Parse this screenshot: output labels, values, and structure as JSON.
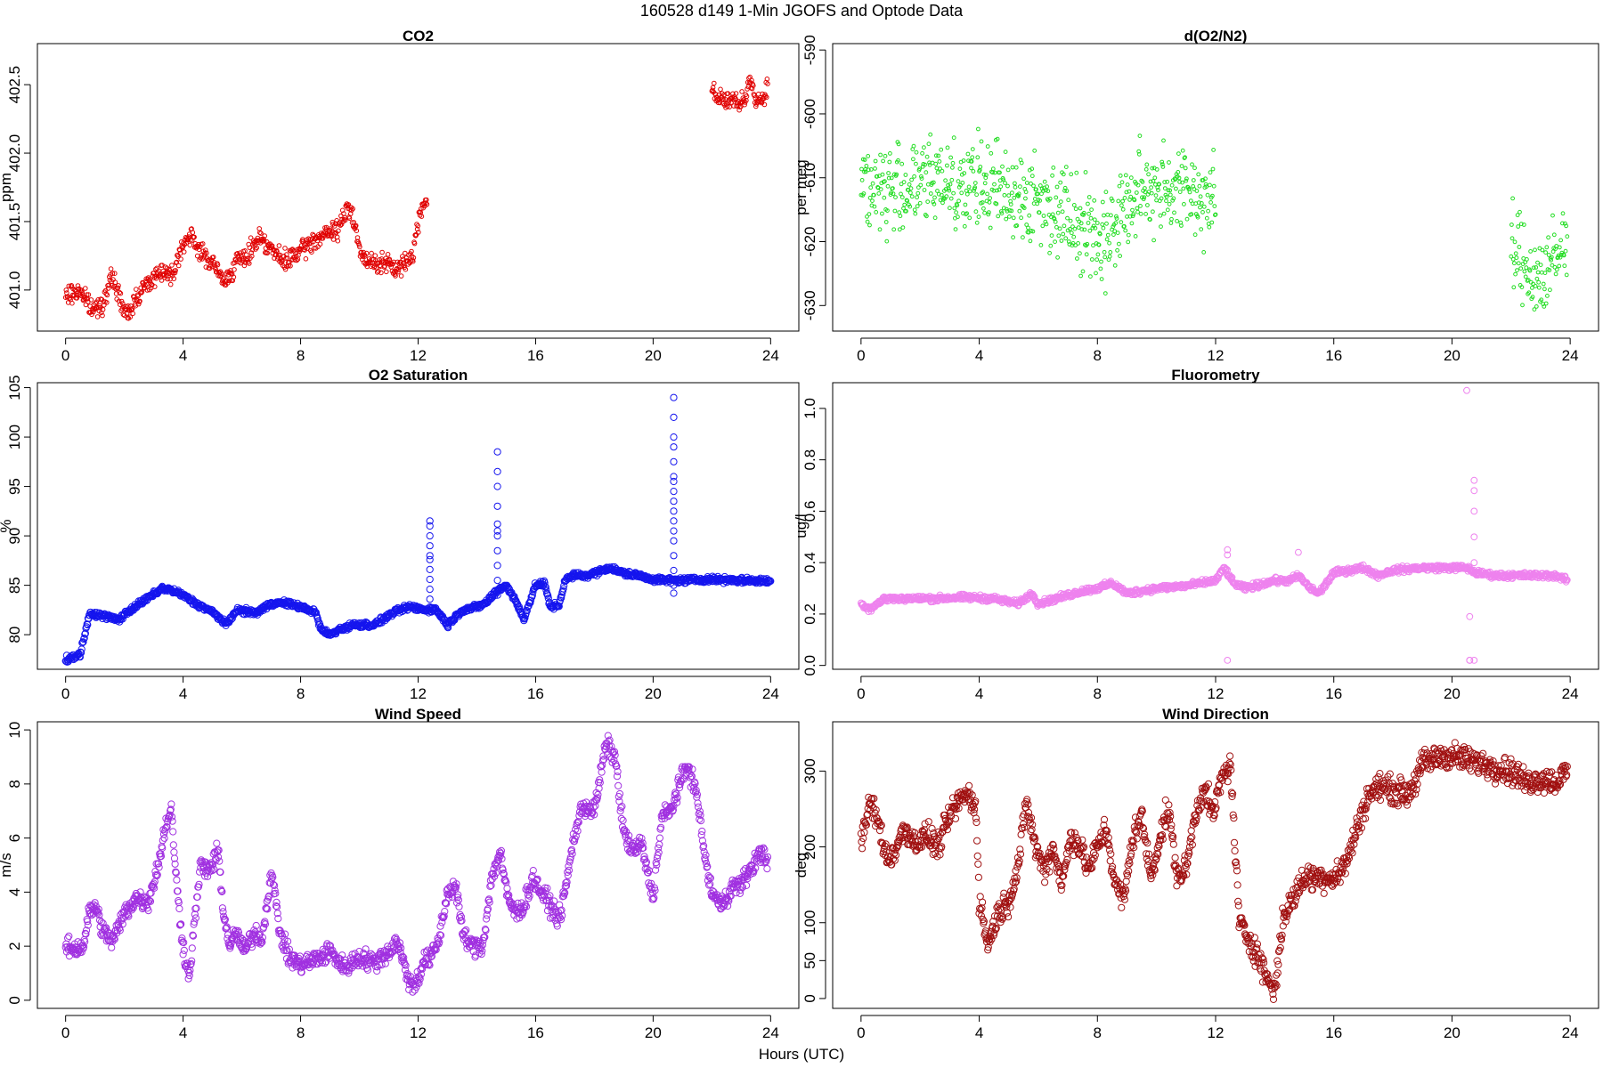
{
  "figure": {
    "title": "160528   d149   1-Min  JGOFS and Optode Data",
    "xlabel": "Hours (UTC)"
  },
  "chart_data": [
    {
      "type": "scatter",
      "title": "CO2",
      "ylabel": "ppm",
      "xlim": [
        -0.96,
        24.96
      ],
      "ylim": [
        400.7,
        402.8
      ],
      "xticks": [
        0,
        4,
        8,
        12,
        16,
        20,
        24
      ],
      "yticks": [
        401.0,
        401.5,
        402.0,
        402.5
      ],
      "color": "#e00000",
      "marker_size": 2.3,
      "x": [
        0,
        0.5,
        0.9,
        1.3,
        1.6,
        1.9,
        2.1,
        2.4,
        2.8,
        3.3,
        3.6,
        4.0,
        4.3,
        4.7,
        5.0,
        5.4,
        5.8,
        6.2,
        6.6,
        7.0,
        7.4,
        7.8,
        8.1,
        8.4,
        8.6,
        9.3,
        9.6,
        9.8,
        10.0,
        10.2,
        10.8,
        11.3,
        11.8,
        12.1,
        12.3,
        22.0,
        22.3,
        22.7,
        23.1,
        23.3,
        23.5,
        23.7,
        23.9
      ],
      "y": [
        400.95,
        401.0,
        400.85,
        400.92,
        401.1,
        400.9,
        400.8,
        400.95,
        401.05,
        401.15,
        401.1,
        401.35,
        401.38,
        401.25,
        401.2,
        401.05,
        401.2,
        401.25,
        401.4,
        401.3,
        401.2,
        401.25,
        401.3,
        401.35,
        401.38,
        401.45,
        401.6,
        401.55,
        401.3,
        401.2,
        401.2,
        401.15,
        401.25,
        401.6,
        401.68,
        402.45,
        402.4,
        402.38,
        402.35,
        402.55,
        402.4,
        402.38,
        402.5
      ],
      "noise": 0.05
    },
    {
      "type": "scatter",
      "title": "d(O2/N2)",
      "ylabel": "per meg",
      "xlim": [
        -0.96,
        24.96
      ],
      "ylim": [
        -634,
        -589
      ],
      "xticks": [
        0,
        4,
        8,
        12,
        16,
        20,
        24
      ],
      "yticks": [
        -630,
        -620,
        -610,
        -600,
        -590
      ],
      "color": "#22dd22",
      "marker_size": 1.9,
      "x": [
        0,
        1,
        2,
        3,
        3.5,
        4.0,
        5.0,
        6.0,
        7.0,
        7.5,
        8.0,
        8.5,
        9.3,
        10.0,
        11.0,
        12.0,
        22.0,
        22.5,
        23.0,
        23.5,
        23.9
      ],
      "y": [
        -611,
        -612,
        -611,
        -610,
        -612,
        -611,
        -612,
        -614,
        -615,
        -617,
        -620,
        -618,
        -613,
        -611,
        -612,
        -614,
        -621,
        -624,
        -626,
        -623,
        -620
      ],
      "noise": 5
    },
    {
      "type": "scatter",
      "title": "O2 Saturation",
      "ylabel": "%",
      "xlim": [
        -0.96,
        24.96
      ],
      "ylim": [
        76.5,
        105.5
      ],
      "xticks": [
        0,
        4,
        8,
        12,
        16,
        20,
        24
      ],
      "yticks": [
        80,
        85,
        90,
        95,
        100,
        105
      ],
      "color": "#1515ee",
      "marker_size": 3.6,
      "x": [
        0,
        0.5,
        0.8,
        1.2,
        1.8,
        2.2,
        2.7,
        3.3,
        3.6,
        4.0,
        4.4,
        5.0,
        5.5,
        5.8,
        6.5,
        7.0,
        7.5,
        8.0,
        8.5,
        8.7,
        9.0,
        9.3,
        9.8,
        10.5,
        11.2,
        11.7,
        12.3,
        12.6,
        13.0,
        13.5,
        14.0,
        14.3,
        14.7,
        15.0,
        15.3,
        15.6,
        16.0,
        16.3,
        16.5,
        16.8,
        17.0,
        17.3,
        17.8,
        18.5,
        19.0,
        19.5,
        20.0,
        20.5,
        21.0,
        22.0,
        23.0,
        24.0
      ],
      "y": [
        77.5,
        78,
        82,
        82,
        81.5,
        82.5,
        83.5,
        84.7,
        84.5,
        84,
        83.2,
        82.3,
        81,
        82.5,
        82.2,
        83.2,
        83.2,
        82.8,
        82.3,
        80.5,
        80,
        80.5,
        81,
        81,
        82.3,
        82.8,
        82.5,
        82.6,
        81,
        82.5,
        82.8,
        83.2,
        84.5,
        85,
        83.5,
        81.6,
        85,
        85.2,
        82.8,
        83,
        85.5,
        86,
        86,
        86.8,
        86.2,
        86,
        85.6,
        85.5,
        85.5,
        85.6,
        85.5,
        85.4
      ],
      "noise": 0.2,
      "spikes": [
        {
          "x": 12.4,
          "values": [
            82.8,
            83.6,
            84.6,
            85.6,
            86.6,
            87.6,
            88.0,
            89.0,
            90.0,
            91.0,
            91.5
          ]
        },
        {
          "x": 14.7,
          "values": [
            84.0,
            85.5,
            87.0,
            88.5,
            90.0,
            90.5,
            91.2,
            93.0,
            95.0,
            96.5,
            98.5
          ]
        },
        {
          "x": 20.7,
          "values": [
            84.2,
            85.0,
            86.5,
            88.0,
            89.5,
            90.5,
            91.5,
            92.5,
            93.5,
            94.5,
            95.5,
            96.0,
            97.5,
            99.0,
            100.0,
            102.0,
            104.0
          ]
        }
      ]
    },
    {
      "type": "scatter",
      "title": "Fluorometry",
      "ylabel": "ug/l",
      "xlim": [
        -0.96,
        24.96
      ],
      "ylim": [
        -0.015,
        1.1
      ],
      "xticks": [
        0,
        4,
        8,
        12,
        16,
        20,
        24
      ],
      "yticks": [
        0.0,
        0.2,
        0.4,
        0.6,
        0.8,
        1.0
      ],
      "color": "#ee82ee",
      "marker_size": 3.4,
      "x": [
        0,
        0.3,
        0.8,
        1.5,
        2.5,
        3.5,
        4.5,
        5.3,
        5.8,
        6.0,
        6.6,
        7.5,
        8.0,
        8.5,
        9.0,
        10.0,
        11.0,
        12.0,
        12.3,
        12.6,
        13.0,
        14.0,
        14.5,
        14.8,
        15.2,
        15.5,
        16.0,
        16.5,
        17.0,
        17.5,
        18.0,
        19.0,
        20.0,
        20.5,
        20.8,
        21.5,
        22.5,
        23.5,
        23.9
      ],
      "y": [
        0.24,
        0.22,
        0.26,
        0.26,
        0.26,
        0.265,
        0.26,
        0.24,
        0.28,
        0.24,
        0.26,
        0.29,
        0.3,
        0.32,
        0.28,
        0.3,
        0.31,
        0.33,
        0.38,
        0.32,
        0.3,
        0.33,
        0.33,
        0.35,
        0.3,
        0.28,
        0.36,
        0.37,
        0.38,
        0.35,
        0.37,
        0.38,
        0.38,
        0.38,
        0.36,
        0.35,
        0.35,
        0.35,
        0.33
      ],
      "noise": 0.008,
      "spikes": [
        {
          "x": 12.4,
          "values": [
            0.45,
            0.43,
            0.02
          ]
        },
        {
          "x": 14.8,
          "values": [
            0.44
          ]
        },
        {
          "x": 20.6,
          "values": [
            0.19,
            0.02,
            0.02
          ]
        },
        {
          "x": 20.75,
          "values": [
            0.72,
            0.68,
            0.6,
            0.5,
            0.4,
            0.02
          ]
        },
        {
          "x": 20.5,
          "values": [
            1.07
          ]
        }
      ]
    },
    {
      "type": "scatter",
      "title": "Wind Speed",
      "ylabel": "m/s",
      "xlim": [
        -0.96,
        24.96
      ],
      "ylim": [
        -0.3,
        10.3
      ],
      "xticks": [
        0,
        4,
        8,
        12,
        16,
        20,
        24
      ],
      "yticks": [
        0,
        2,
        4,
        6,
        8,
        10
      ],
      "color": "#a030e0",
      "marker_size": 3.6,
      "x": [
        0,
        0.3,
        0.6,
        0.8,
        1.0,
        1.3,
        1.6,
        2.0,
        2.4,
        2.8,
        3.2,
        3.4,
        3.6,
        3.8,
        4.0,
        4.2,
        4.4,
        4.6,
        4.8,
        5.0,
        5.2,
        5.4,
        5.6,
        5.8,
        6.1,
        6.4,
        6.7,
        7.0,
        7.3,
        7.6,
        8.0,
        8.5,
        9.0,
        9.5,
        10.0,
        10.5,
        11.0,
        11.3,
        11.6,
        11.8,
        12.0,
        12.2,
        12.4,
        12.7,
        13.0,
        13.3,
        13.5,
        13.8,
        14.2,
        14.5,
        14.8,
        15.0,
        15.3,
        15.6,
        15.9,
        16.2,
        16.5,
        16.8,
        17.0,
        17.3,
        17.6,
        18.0,
        18.4,
        18.7,
        19.0,
        19.3,
        19.6,
        20.0,
        20.3,
        20.6,
        20.9,
        21.2,
        21.5,
        21.8,
        22.0,
        22.3,
        22.7,
        23.0,
        23.4,
        23.7,
        23.9
      ],
      "y": [
        2,
        1.9,
        2.0,
        3.2,
        3.5,
        2.5,
        2.2,
        3.2,
        3.8,
        3.6,
        5.2,
        6.5,
        7.0,
        4.0,
        2.0,
        0.8,
        3.0,
        5.0,
        4.8,
        5.0,
        5.5,
        3.0,
        2.0,
        2.5,
        1.8,
        2.5,
        2.3,
        4.8,
        2.5,
        1.6,
        1.3,
        1.5,
        1.8,
        1.2,
        1.6,
        1.4,
        1.8,
        2.2,
        1.0,
        0.5,
        0.8,
        1.5,
        1.5,
        2.2,
        4.0,
        4.2,
        2.5,
        2.0,
        2.0,
        4.5,
        5.5,
        4.0,
        3.2,
        3.5,
        4.5,
        4.0,
        3.5,
        3.0,
        4.0,
        6.0,
        7.2,
        7.0,
        9.5,
        9.0,
        6.2,
        5.5,
        5.8,
        3.8,
        6.8,
        7.0,
        8.0,
        8.7,
        7.5,
        5.0,
        4.0,
        3.5,
        4.2,
        4.3,
        5.0,
        5.5,
        5.2
      ],
      "noise": 0.25
    },
    {
      "type": "scatter",
      "title": "Wind Direction",
      "ylabel": "deg",
      "xlim": [
        -0.96,
        24.96
      ],
      "ylim": [
        -13,
        365
      ],
      "xticks": [
        0,
        4,
        8,
        12,
        16,
        20,
        24
      ],
      "yticks": [
        0,
        50,
        100,
        200,
        300
      ],
      "color": "#a01010",
      "marker_size": 3.6,
      "x": [
        0,
        0.3,
        0.6,
        0.9,
        1.2,
        1.5,
        1.8,
        2.2,
        2.6,
        3.0,
        3.3,
        3.6,
        3.9,
        4.0,
        4.3,
        4.6,
        5.0,
        5.3,
        5.6,
        5.9,
        6.2,
        6.5,
        6.8,
        7.1,
        7.4,
        7.7,
        8.0,
        8.3,
        8.6,
        8.9,
        9.2,
        9.5,
        9.8,
        10.1,
        10.4,
        10.7,
        11.0,
        11.3,
        11.6,
        11.9,
        12.2,
        12.5,
        12.8,
        13.1,
        13.4,
        13.7,
        14.0,
        14.3,
        14.6,
        15.0,
        15.5,
        16.0,
        16.3,
        16.6,
        16.9,
        17.2,
        17.6,
        18.0,
        18.5,
        18.8,
        19.0,
        19.3,
        19.7,
        20.0,
        20.5,
        21.0,
        21.5,
        22.0,
        22.5,
        23.0,
        23.5,
        23.9
      ],
      "y": [
        200,
        260,
        230,
        180,
        200,
        225,
        205,
        215,
        200,
        240,
        260,
        270,
        250,
        130,
        70,
        110,
        130,
        170,
        260,
        200,
        170,
        200,
        150,
        215,
        200,
        170,
        200,
        225,
        150,
        130,
        215,
        240,
        160,
        210,
        250,
        160,
        170,
        240,
        280,
        240,
        290,
        310,
        100,
        80,
        60,
        30,
        10,
        110,
        130,
        160,
        160,
        160,
        170,
        200,
        240,
        270,
        280,
        275,
        270,
        290,
        310,
        315,
        320,
        320,
        315,
        310,
        305,
        300,
        285,
        290,
        285,
        300
      ],
      "noise": 12
    }
  ]
}
